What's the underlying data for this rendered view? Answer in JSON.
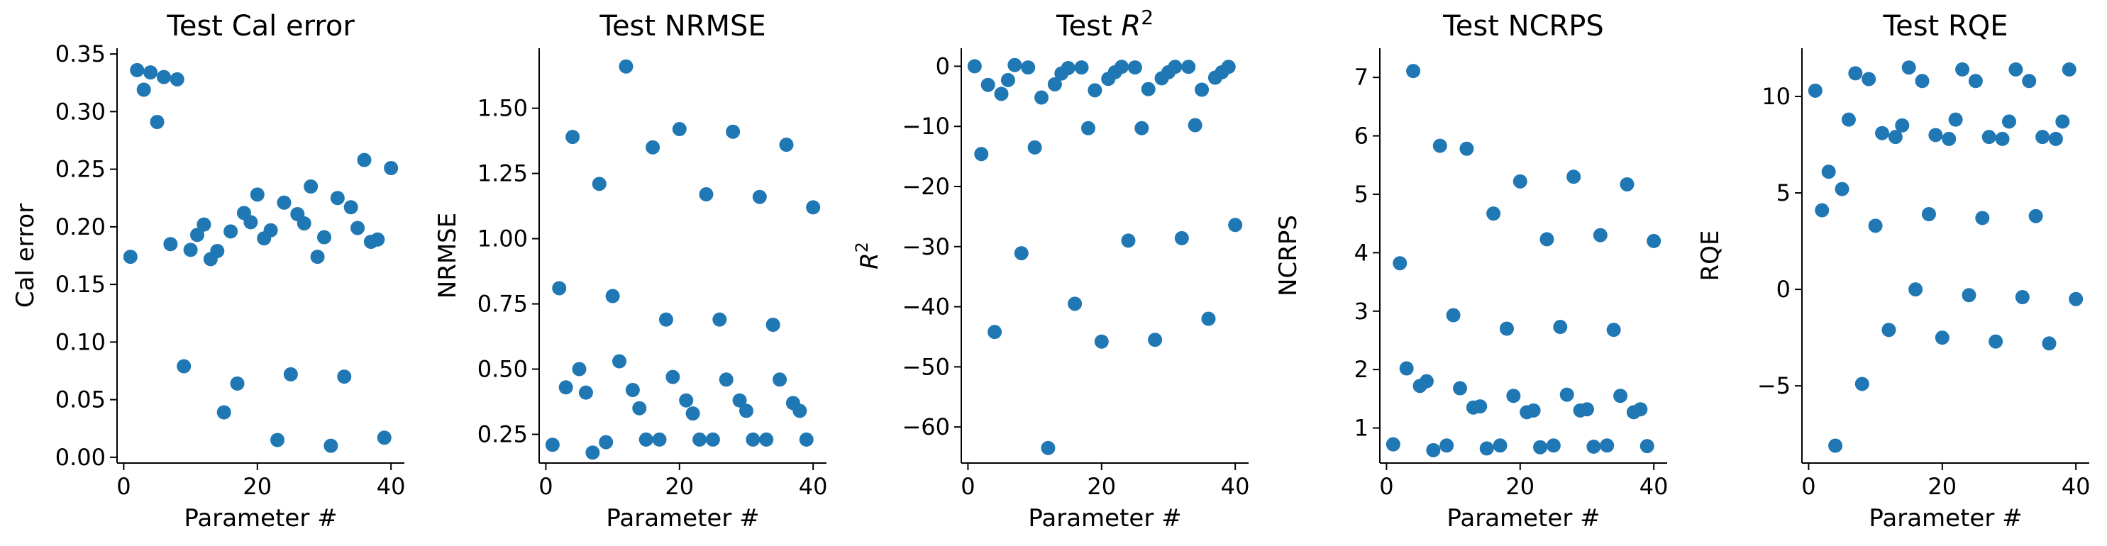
{
  "chart_data": [
    {
      "type": "scatter",
      "title": "Test Cal error",
      "xlabel": "Parameter #",
      "ylabel": "Cal error",
      "xlim": [
        -1,
        42
      ],
      "ylim": [
        -0.005,
        0.355
      ],
      "xticks": [
        0,
        20,
        40
      ],
      "yticks": [
        0.0,
        0.05,
        0.1,
        0.15,
        0.2,
        0.25,
        0.3,
        0.35
      ],
      "ytick_labels": [
        "0.00",
        "0.05",
        "0.10",
        "0.15",
        "0.20",
        "0.25",
        "0.30",
        "0.35"
      ],
      "x": [
        1,
        2,
        3,
        4,
        5,
        6,
        7,
        8,
        9,
        10,
        11,
        12,
        13,
        14,
        15,
        16,
        17,
        18,
        19,
        20,
        21,
        22,
        23,
        24,
        25,
        26,
        27,
        28,
        29,
        30,
        31,
        32,
        33,
        34,
        35,
        36,
        37,
        38,
        39,
        40
      ],
      "y": [
        0.174,
        0.336,
        0.319,
        0.334,
        0.291,
        0.33,
        0.185,
        0.328,
        0.079,
        0.18,
        0.193,
        0.202,
        0.172,
        0.179,
        0.039,
        0.196,
        0.064,
        0.212,
        0.204,
        0.228,
        0.19,
        0.197,
        0.015,
        0.221,
        0.072,
        0.211,
        0.203,
        0.235,
        0.174,
        0.191,
        0.01,
        0.225,
        0.07,
        0.217,
        0.199,
        0.258,
        0.187,
        0.189,
        0.017,
        0.251
      ]
    },
    {
      "type": "scatter",
      "title": "Test NRMSE",
      "xlabel": "Parameter #",
      "ylabel": "NRMSE",
      "xlim": [
        -1,
        42
      ],
      "ylim": [
        0.14,
        1.73
      ],
      "xticks": [
        0,
        20,
        40
      ],
      "yticks": [
        0.25,
        0.5,
        0.75,
        1.0,
        1.25,
        1.5
      ],
      "ytick_labels": [
        "0.25",
        "0.50",
        "0.75",
        "1.00",
        "1.25",
        "1.50"
      ],
      "x": [
        1,
        2,
        3,
        4,
        5,
        6,
        7,
        8,
        9,
        10,
        11,
        12,
        13,
        14,
        15,
        16,
        17,
        18,
        19,
        20,
        21,
        22,
        23,
        24,
        25,
        26,
        27,
        28,
        29,
        30,
        31,
        32,
        33,
        34,
        35,
        36,
        37,
        38,
        39,
        40
      ],
      "y": [
        0.21,
        0.81,
        0.43,
        1.39,
        0.5,
        0.41,
        0.18,
        1.21,
        0.22,
        0.78,
        0.53,
        1.66,
        0.42,
        0.35,
        0.23,
        1.35,
        0.23,
        0.69,
        0.47,
        1.42,
        0.38,
        0.33,
        0.23,
        1.17,
        0.23,
        0.69,
        0.46,
        1.41,
        0.38,
        0.34,
        0.23,
        1.16,
        0.23,
        0.67,
        0.46,
        1.36,
        0.37,
        0.34,
        0.23,
        1.12
      ]
    },
    {
      "type": "scatter",
      "title": "Test R^2",
      "xlabel": "Parameter #",
      "ylabel": "R^2",
      "xlim": [
        -1,
        42
      ],
      "ylim": [
        -66,
        3
      ],
      "xticks": [
        0,
        20,
        40
      ],
      "yticks": [
        0,
        -10,
        -20,
        -30,
        -40,
        -50,
        -60
      ],
      "ytick_labels": [
        "0",
        "−10",
        "−20",
        "−30",
        "−40",
        "−50",
        "−60"
      ],
      "x": [
        1,
        2,
        3,
        4,
        5,
        6,
        7,
        8,
        9,
        10,
        11,
        12,
        13,
        14,
        15,
        16,
        17,
        18,
        19,
        20,
        21,
        22,
        23,
        24,
        25,
        26,
        27,
        28,
        29,
        30,
        31,
        32,
        33,
        34,
        35,
        36,
        37,
        38,
        39,
        40
      ],
      "y": [
        0,
        -14.6,
        -3.1,
        -44.2,
        -4.6,
        -2.3,
        0.2,
        -31.1,
        -0.2,
        -13.5,
        -5.2,
        -63.5,
        -3.0,
        -1.2,
        -0.3,
        -39.5,
        -0.2,
        -10.3,
        -4.0,
        -45.8,
        -2.1,
        -1.0,
        -0.1,
        -29.0,
        -0.2,
        -10.3,
        -3.8,
        -45.5,
        -2.0,
        -1.0,
        -0.1,
        -28.6,
        -0.1,
        -9.8,
        -3.9,
        -42.0,
        -1.9,
        -1.0,
        -0.1,
        -26.4
      ]
    },
    {
      "type": "scatter",
      "title": "Test NCRPS",
      "xlabel": "Parameter #",
      "ylabel": "NCRPS",
      "xlim": [
        -1,
        42
      ],
      "ylim": [
        0.4,
        7.5
      ],
      "xticks": [
        0,
        20,
        40
      ],
      "yticks": [
        1,
        2,
        3,
        4,
        5,
        6,
        7
      ],
      "ytick_labels": [
        "1",
        "2",
        "3",
        "4",
        "5",
        "6",
        "7"
      ],
      "x": [
        1,
        2,
        3,
        4,
        5,
        6,
        7,
        8,
        9,
        10,
        11,
        12,
        13,
        14,
        15,
        16,
        17,
        18,
        19,
        20,
        21,
        22,
        23,
        24,
        25,
        26,
        27,
        28,
        29,
        30,
        31,
        32,
        33,
        34,
        35,
        36,
        37,
        38,
        39,
        40
      ],
      "y": [
        0.72,
        3.82,
        2.02,
        7.11,
        1.72,
        1.8,
        0.62,
        5.83,
        0.7,
        2.93,
        1.68,
        5.78,
        1.35,
        1.37,
        0.65,
        4.67,
        0.7,
        2.7,
        1.55,
        5.22,
        1.27,
        1.3,
        0.67,
        4.23,
        0.7,
        2.73,
        1.57,
        5.3,
        1.3,
        1.32,
        0.68,
        4.3,
        0.7,
        2.68,
        1.55,
        5.17,
        1.27,
        1.32,
        0.69,
        4.2
      ]
    },
    {
      "type": "scatter",
      "title": "Test RQE",
      "xlabel": "Parameter #",
      "ylabel": "RQE",
      "xlim": [
        -1,
        42
      ],
      "ylim": [
        -9,
        12.5
      ],
      "xticks": [
        0,
        20,
        40
      ],
      "yticks": [
        -5,
        0,
        5,
        10
      ],
      "ytick_labels": [
        "−5",
        "0",
        "5",
        "10"
      ],
      "x": [
        1,
        2,
        3,
        4,
        5,
        6,
        7,
        8,
        9,
        10,
        11,
        12,
        13,
        14,
        15,
        16,
        17,
        18,
        19,
        20,
        21,
        22,
        23,
        24,
        25,
        26,
        27,
        28,
        29,
        30,
        31,
        32,
        33,
        34,
        35,
        36,
        37,
        38,
        39,
        40
      ],
      "y": [
        10.3,
        4.1,
        6.1,
        -8.1,
        5.2,
        8.8,
        11.2,
        -4.9,
        10.9,
        3.3,
        8.1,
        -2.1,
        7.9,
        8.5,
        11.5,
        -0.0,
        10.8,
        3.9,
        8.0,
        -2.5,
        7.8,
        8.8,
        11.4,
        -0.3,
        10.8,
        3.7,
        7.9,
        -2.7,
        7.8,
        8.7,
        11.4,
        -0.4,
        10.8,
        3.8,
        7.9,
        -2.8,
        7.8,
        8.7,
        11.4,
        -0.5
      ]
    }
  ]
}
